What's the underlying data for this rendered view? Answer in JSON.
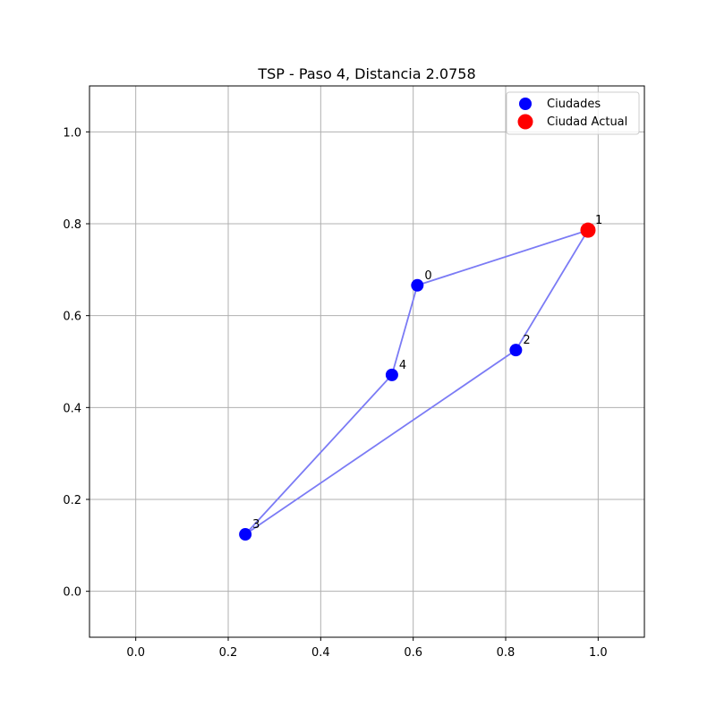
{
  "chart_data": {
    "type": "scatter",
    "title": "TSP - Paso 4, Distancia 2.0758",
    "xlabel": "",
    "ylabel": "",
    "xlim": [
      -0.1,
      1.1
    ],
    "ylim": [
      -0.1,
      1.1
    ],
    "xticks": [
      0.0,
      0.2,
      0.4,
      0.6,
      0.8,
      1.0
    ],
    "xtick_labels": [
      "0.0",
      "0.2",
      "0.4",
      "0.6",
      "0.8",
      "1.0"
    ],
    "yticks": [
      0.0,
      0.2,
      0.4,
      0.6,
      0.8,
      1.0
    ],
    "ytick_labels": [
      "0.0",
      "0.2",
      "0.4",
      "0.6",
      "0.8",
      "1.0"
    ],
    "grid": true,
    "legend_position": "top-right",
    "cities": [
      {
        "label": "0",
        "x": 0.609,
        "y": 0.666
      },
      {
        "label": "1",
        "x": 0.978,
        "y": 0.786
      },
      {
        "label": "2",
        "x": 0.822,
        "y": 0.525
      },
      {
        "label": "3",
        "x": 0.237,
        "y": 0.124
      },
      {
        "label": "4",
        "x": 0.554,
        "y": 0.471
      }
    ],
    "route": [
      "3",
      "4",
      "0",
      "1",
      "2",
      "3"
    ],
    "current_city": "1",
    "series": [
      {
        "name": "Ciudades",
        "color": "#0000ff"
      },
      {
        "name": "Ciudad Actual",
        "color": "#ff0000"
      }
    ],
    "route_color": "#7b7bf5"
  }
}
